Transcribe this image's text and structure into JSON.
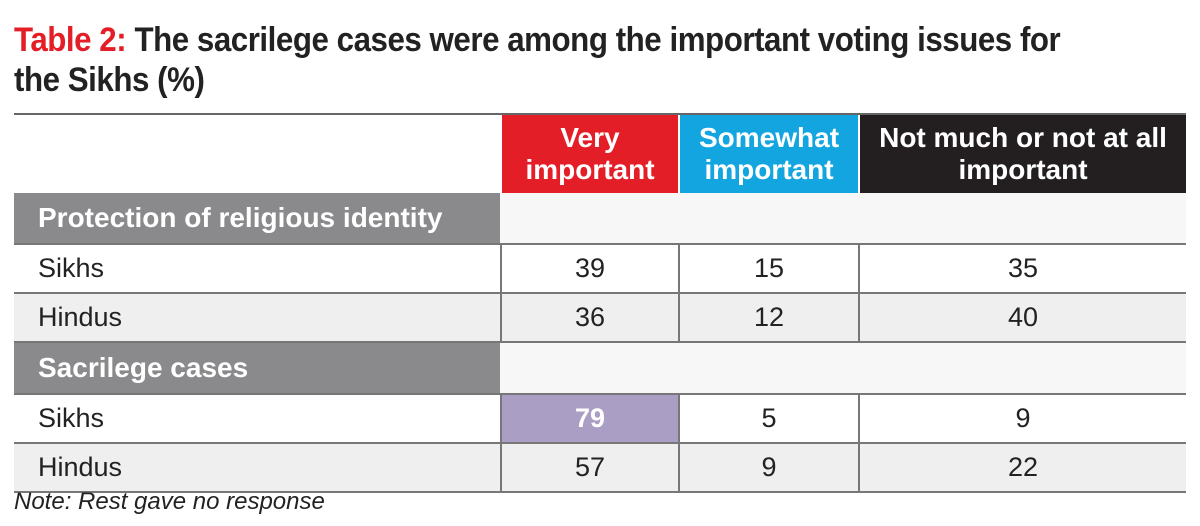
{
  "chart_data": {
    "type": "table",
    "title_label": "Table 2:",
    "title": "The sacrilege cases were among the important voting issues for the Sikhs (%)",
    "columns": [
      "Very important",
      "Somewhat important",
      "Not much or not at all important"
    ],
    "column_colors": [
      "#e41e26",
      "#12a5e0",
      "#231f20"
    ],
    "highlight_color": "#ab9ec4",
    "sections": [
      {
        "name": "Protection of religious identity",
        "rows": [
          {
            "label": "Sikhs",
            "values": [
              "39",
              "15",
              "35"
            ]
          },
          {
            "label": "Hindus",
            "values": [
              "36",
              "12",
              "40"
            ]
          }
        ]
      },
      {
        "name": "Sacrilege cases",
        "rows": [
          {
            "label": "Sikhs",
            "values": [
              "79",
              "5",
              "9"
            ],
            "highlight": 0
          },
          {
            "label": "Hindus",
            "values": [
              "57",
              "9",
              "22"
            ]
          }
        ]
      }
    ],
    "note": "Note: Rest gave no response"
  }
}
